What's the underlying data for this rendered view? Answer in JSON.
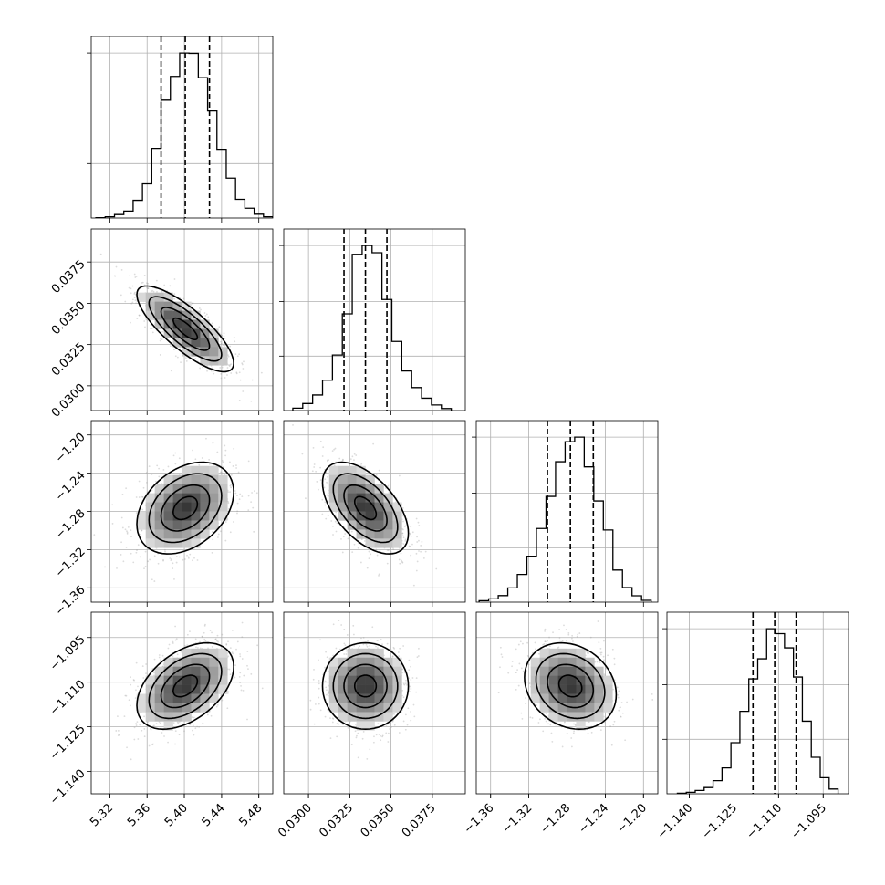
{
  "chart_data": {
    "type": "corner",
    "parameters": [
      {
        "range": [
          5.3,
          5.495
        ],
        "hist_ticks": [
          "5.32",
          "5.36",
          "5.40",
          "5.44",
          "5.48"
        ],
        "quantiles": [
          5.375,
          5.401,
          5.427
        ],
        "histogram": {
          "bin_edges": [
            5.305,
            5.315,
            5.325,
            5.335,
            5.345,
            5.355,
            5.365,
            5.375,
            5.385,
            5.395,
            5.405,
            5.415,
            5.425,
            5.435,
            5.445,
            5.455,
            5.465,
            5.475,
            5.485,
            5.495
          ],
          "counts": [
            1,
            4,
            11,
            22,
            56,
            108,
            220,
            372,
            447,
            521,
            520,
            443,
            338,
            217,
            126,
            59,
            31,
            12,
            4
          ]
        }
      },
      {
        "range": [
          0.0285,
          0.0395
        ],
        "ticks": [
          "0.0300",
          "0.0325",
          "0.0350",
          "0.0375"
        ],
        "quantiles": [
          0.03215,
          0.03345,
          0.03475
        ],
        "histogram": {
          "bin_edges": [
            0.02905,
            0.02965,
            0.03025,
            0.03085,
            0.03145,
            0.03205,
            0.03265,
            0.03325,
            0.03385,
            0.03445,
            0.03505,
            0.03565,
            0.03625,
            0.03685,
            0.03745,
            0.03805,
            0.03865
          ],
          "counts": [
            12,
            35,
            78,
            152,
            278,
            484,
            782,
            826,
            790,
            556,
            346,
            198,
            115,
            62,
            28,
            10
          ]
        }
      },
      {
        "range": [
          -1.375,
          -1.185
        ],
        "ticks": [
          "−1.36",
          "−1.32",
          "−1.28",
          "−1.24",
          "−1.20"
        ],
        "quantiles": [
          -1.3005,
          -1.2765,
          -1.2525
        ],
        "histogram": {
          "bin_edges": [
            -1.372,
            -1.362,
            -1.352,
            -1.342,
            -1.332,
            -1.322,
            -1.312,
            -1.302,
            -1.292,
            -1.282,
            -1.272,
            -1.262,
            -1.252,
            -1.242,
            -1.232,
            -1.222,
            -1.212,
            -1.202,
            -1.192
          ],
          "counts": [
            8,
            18,
            36,
            78,
            152,
            252,
            404,
            580,
            770,
            880,
            905,
            742,
            555,
            396,
            176,
            80,
            35,
            10
          ]
        }
      },
      {
        "range": [
          -1.1475,
          -1.0865
        ],
        "ticks": [
          "−1.140",
          "−1.125",
          "−1.110",
          "−1.095"
        ],
        "quantiles": [
          -1.1186,
          -1.1113,
          -1.1041
        ],
        "histogram": {
          "bin_edges": [
            -1.144,
            -1.141,
            -1.138,
            -1.135,
            -1.132,
            -1.129,
            -1.126,
            -1.123,
            -1.12,
            -1.117,
            -1.114,
            -1.111,
            -1.108,
            -1.105,
            -1.102,
            -1.099,
            -1.096,
            -1.093,
            -1.09
          ],
          "counts": [
            3,
            8,
            18,
            34,
            72,
            142,
            280,
            452,
            630,
            740,
            905,
            878,
            800,
            640,
            398,
            200,
            88,
            26
          ]
        }
      }
    ],
    "correlations": [
      [
        1,
        0
      ],
      [
        2,
        0
      ],
      [
        2,
        1
      ],
      [
        3,
        0
      ],
      [
        3,
        1
      ],
      [
        3,
        2
      ]
    ],
    "correlation_values": [
      -0.8,
      0.35,
      -0.55,
      0.45,
      0.0,
      -0.2
    ],
    "grid": true,
    "colors": {
      "line": "#000000",
      "samples": "#9a9a9a",
      "density_max": "#1a1a1a",
      "grid": "#b0b0b0"
    }
  }
}
